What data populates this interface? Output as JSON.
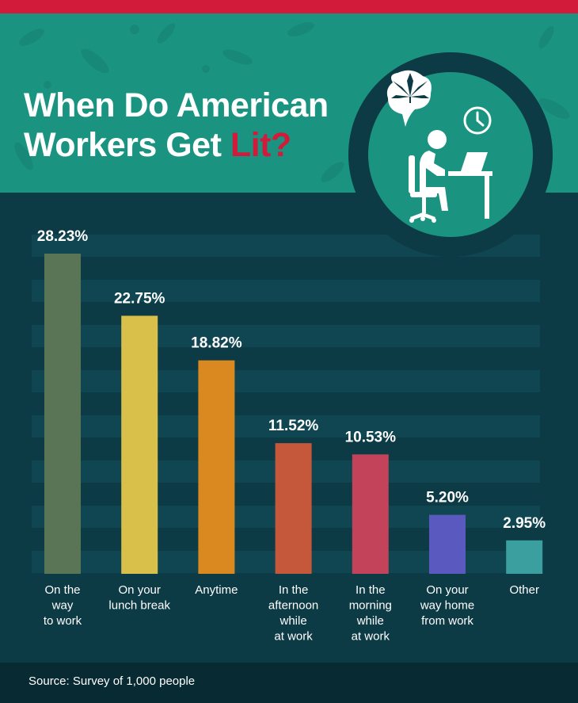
{
  "title": {
    "line1": "When Do American",
    "line2_prefix": "Workers Get ",
    "line2_highlight": "Lit?"
  },
  "source": "Source: Survey of 1,000 people",
  "colors": {
    "stripe": "#d21b3a",
    "header": "#1a9481",
    "background": "#0c3a45",
    "footer": "#082a33",
    "accent": "#d21b3a"
  },
  "icons": [
    "cannabis-leaf-icon",
    "clock-icon",
    "office-worker-icon"
  ],
  "chart_data": {
    "type": "bar",
    "categories": [
      [
        "On the",
        "way",
        "to work"
      ],
      [
        "On your",
        "lunch break"
      ],
      [
        "Anytime"
      ],
      [
        "In the",
        "afternoon",
        "while",
        "at work"
      ],
      [
        "In the",
        "morning",
        "while",
        "at work"
      ],
      [
        "On your",
        "way home",
        "from work"
      ],
      [
        "Other"
      ]
    ],
    "values": [
      28.23,
      22.75,
      18.82,
      11.52,
      10.53,
      5.2,
      2.95
    ],
    "data_labels": [
      "28.23%",
      "22.75%",
      "18.82%",
      "11.52%",
      "10.53%",
      "5.20%",
      "2.95%"
    ],
    "colors": [
      "#597556",
      "#d8c04a",
      "#d9891f",
      "#c5573b",
      "#c2435a",
      "#5a59c0",
      "#3a9f9e"
    ],
    "ylim": [
      0,
      28.23
    ],
    "grid": true
  }
}
